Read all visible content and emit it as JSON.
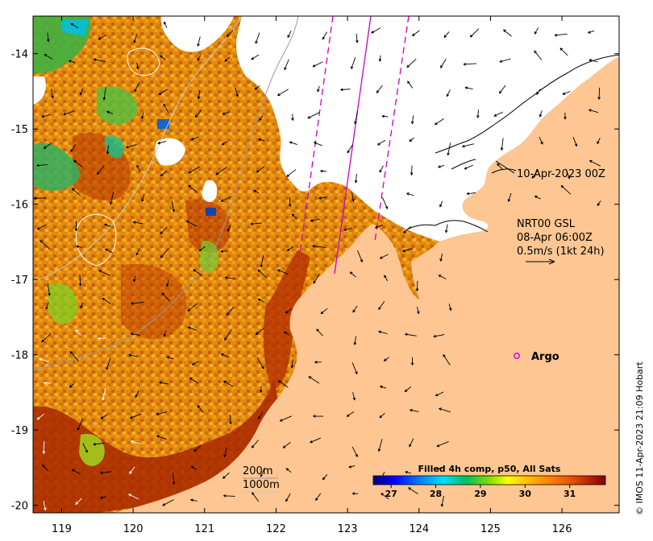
{
  "map": {
    "x_ticks": [
      "119",
      "120",
      "121",
      "122",
      "123",
      "124",
      "125",
      "126"
    ],
    "y_ticks": [
      "-14",
      "-15",
      "-16",
      "-17",
      "-18",
      "-19",
      "-20"
    ],
    "xlim": [
      118.6,
      126.8
    ],
    "ylim": [
      -20.1,
      -13.5
    ]
  },
  "annotations": {
    "date_label": "10-Apr-2023 00Z",
    "current_title": "NRT00 GSL",
    "current_time": "08-Apr 06:00Z",
    "current_scale": "0.5m/s (1kt 24h)",
    "argo_label": "Argo",
    "isobath_200": "200m",
    "isobath_1000": "1000m",
    "credit": "© IMOS 11-Apr-2023 21:09 Hobart"
  },
  "colorbar": {
    "title": "Filled 4h comp, p50, All Sats",
    "ticks": [
      "27",
      "28",
      "29",
      "30",
      "31"
    ],
    "range": [
      26.6,
      31.8
    ],
    "colors": [
      "#00007f",
      "#0000ff",
      "#0080ff",
      "#00e0ff",
      "#00c060",
      "#80e000",
      "#ffff00",
      "#ffc000",
      "#ff8000",
      "#e05000",
      "#b02000",
      "#800000"
    ]
  },
  "colors": {
    "land": "#fdc692",
    "cloud": "#ffffff",
    "track": "#cc00cc",
    "argo": "#dd00dd"
  }
}
